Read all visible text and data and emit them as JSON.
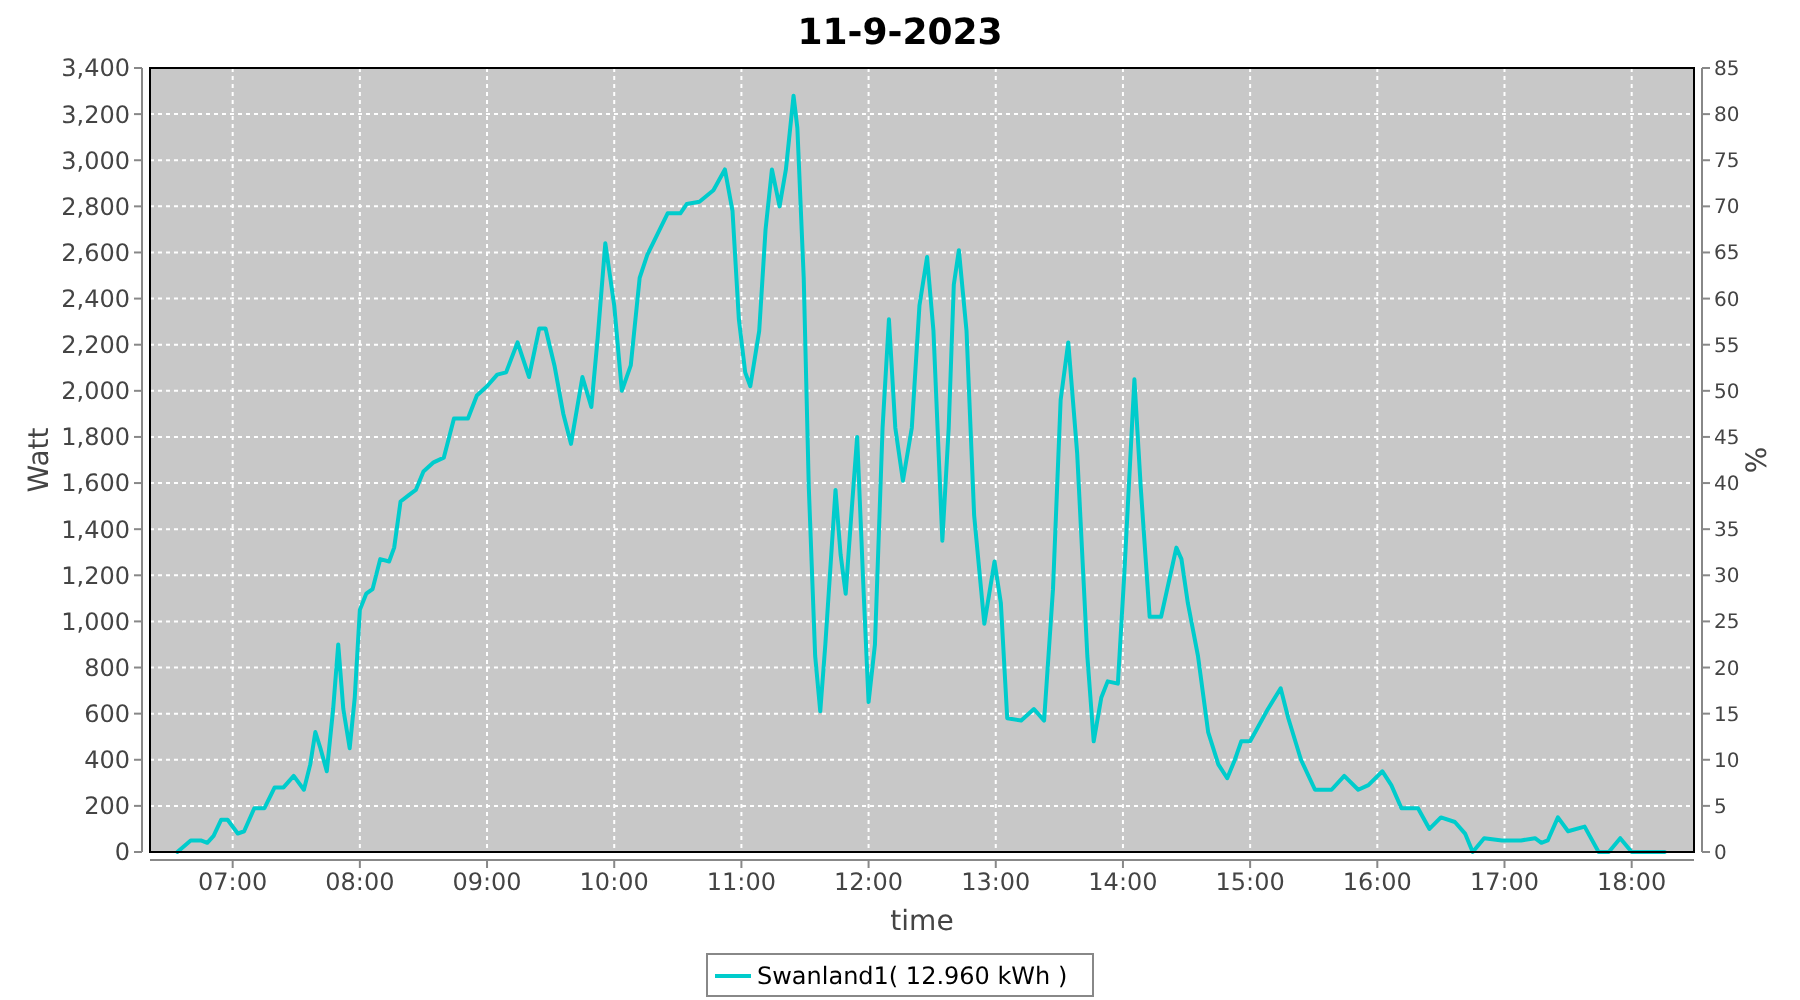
{
  "chart_data": {
    "type": "line",
    "title": "11-9-2023",
    "xlabel": "time",
    "ylabel": "Watt",
    "y2label": "%",
    "xlim": [
      6.35,
      18.49
    ],
    "xticks": [
      {
        "value": 7,
        "label": "07:00"
      },
      {
        "value": 8,
        "label": "08:00"
      },
      {
        "value": 9,
        "label": "09:00"
      },
      {
        "value": 10,
        "label": "10:00"
      },
      {
        "value": 11,
        "label": "11:00"
      },
      {
        "value": 12,
        "label": "12:00"
      },
      {
        "value": 13,
        "label": "13:00"
      },
      {
        "value": 14,
        "label": "14:00"
      },
      {
        "value": 15,
        "label": "15:00"
      },
      {
        "value": 16,
        "label": "16:00"
      },
      {
        "value": 17,
        "label": "17:00"
      },
      {
        "value": 18,
        "label": "18:00"
      }
    ],
    "ylim": [
      0,
      3400
    ],
    "yticks": [
      0,
      200,
      400,
      600,
      800,
      {
        "value": 1000,
        "label": "1,000"
      },
      {
        "value": 1200,
        "label": "1,200"
      },
      {
        "value": 1400,
        "label": "1,400"
      },
      {
        "value": 1600,
        "label": "1,600"
      },
      {
        "value": 1800,
        "label": "1,800"
      },
      {
        "value": 2000,
        "label": "2,000"
      },
      {
        "value": 2200,
        "label": "2,200"
      },
      {
        "value": 2400,
        "label": "2,400"
      },
      {
        "value": 2600,
        "label": "2,600"
      },
      {
        "value": 2800,
        "label": "2,800"
      },
      {
        "value": 3000,
        "label": "3,000"
      },
      {
        "value": 3200,
        "label": "3,200"
      },
      {
        "value": 3400,
        "label": "3,400"
      }
    ],
    "y2lim": [
      0,
      85
    ],
    "y2ticks": [
      0,
      5,
      10,
      15,
      20,
      25,
      30,
      35,
      40,
      45,
      50,
      55,
      60,
      65,
      70,
      75,
      80,
      85
    ],
    "grid": true,
    "legend": "bottom",
    "line_style": "solid",
    "marker": "none",
    "series": [
      {
        "name": "Swanland1( 12.960 kWh )",
        "color": "#00cccc",
        "x": [
          6.565,
          6.67,
          6.75,
          6.8,
          6.85,
          6.91,
          6.96,
          7.04,
          7.09,
          7.17,
          7.25,
          7.33,
          7.4,
          7.48,
          7.56,
          7.61,
          7.65,
          7.69,
          7.74,
          7.79,
          7.83,
          7.87,
          7.92,
          7.96,
          8.0,
          8.05,
          8.1,
          8.16,
          8.23,
          8.27,
          8.32,
          8.39,
          8.44,
          8.5,
          8.58,
          8.66,
          8.74,
          8.85,
          8.92,
          9.0,
          9.08,
          9.15,
          9.24,
          9.33,
          9.41,
          9.46,
          9.53,
          9.6,
          9.66,
          9.75,
          9.82,
          9.87,
          9.93,
          10.0,
          10.06,
          10.13,
          10.2,
          10.26,
          10.34,
          10.42,
          10.52,
          10.57,
          10.67,
          10.78,
          10.87,
          10.93,
          10.98,
          11.03,
          11.07,
          11.14,
          11.19,
          11.24,
          11.3,
          11.35,
          11.41,
          11.44,
          11.49,
          11.53,
          11.58,
          11.62,
          11.66,
          11.74,
          11.78,
          11.82,
          11.86,
          11.91,
          11.96,
          12.0,
          12.05,
          12.11,
          12.16,
          12.21,
          12.27,
          12.34,
          12.4,
          12.46,
          12.51,
          12.58,
          12.63,
          12.67,
          12.71,
          12.77,
          12.83,
          12.91,
          12.99,
          13.04,
          13.09,
          13.2,
          13.3,
          13.38,
          13.45,
          13.51,
          13.57,
          13.64,
          13.72,
          13.77,
          13.83,
          13.88,
          13.96,
          14.01,
          14.09,
          14.14,
          14.21,
          14.3,
          14.42,
          14.46,
          14.51,
          14.59,
          14.67,
          14.75,
          14.82,
          14.88,
          14.93,
          15.0,
          15.06,
          15.14,
          15.24,
          15.3,
          15.4,
          15.51,
          15.64,
          15.74,
          15.85,
          15.93,
          16.04,
          16.11,
          16.19,
          16.32,
          16.41,
          16.5,
          16.61,
          16.69,
          16.75,
          16.84,
          16.98,
          17.13,
          17.24,
          17.29,
          17.34,
          17.42,
          17.5,
          17.63,
          17.74,
          17.82,
          17.91,
          18.0,
          18.26
        ],
        "values": [
          0,
          50,
          50,
          40,
          70,
          140,
          140,
          80,
          90,
          190,
          190,
          280,
          280,
          330,
          270,
          380,
          520,
          450,
          350,
          620,
          900,
          620,
          450,
          670,
          1050,
          1120,
          1140,
          1270,
          1260,
          1320,
          1520,
          1550,
          1570,
          1650,
          1690,
          1710,
          1880,
          1880,
          1980,
          2020,
          2070,
          2080,
          2210,
          2060,
          2270,
          2270,
          2110,
          1900,
          1770,
          2060,
          1930,
          2230,
          2640,
          2370,
          2000,
          2110,
          2490,
          2590,
          2680,
          2770,
          2770,
          2810,
          2820,
          2870,
          2960,
          2780,
          2310,
          2080,
          2020,
          2260,
          2700,
          2960,
          2800,
          2960,
          3280,
          3140,
          2490,
          1580,
          850,
          610,
          900,
          1570,
          1290,
          1120,
          1430,
          1800,
          1140,
          650,
          900,
          1840,
          2310,
          1840,
          1610,
          1840,
          2370,
          2580,
          2260,
          1350,
          1840,
          2460,
          2610,
          2260,
          1460,
          990,
          1260,
          1080,
          580,
          570,
          620,
          570,
          1140,
          1960,
          2210,
          1730,
          850,
          480,
          670,
          740,
          730,
          1200,
          2050,
          1580,
          1020,
          1020,
          1320,
          1270,
          1080,
          850,
          520,
          380,
          320,
          400,
          480,
          480,
          540,
          620,
          710,
          580,
          400,
          270,
          270,
          330,
          270,
          290,
          350,
          290,
          190,
          190,
          100,
          150,
          130,
          80,
          0,
          60,
          50,
          50,
          60,
          40,
          50,
          150,
          90,
          110,
          0,
          0,
          60,
          0,
          0
        ]
      }
    ]
  }
}
